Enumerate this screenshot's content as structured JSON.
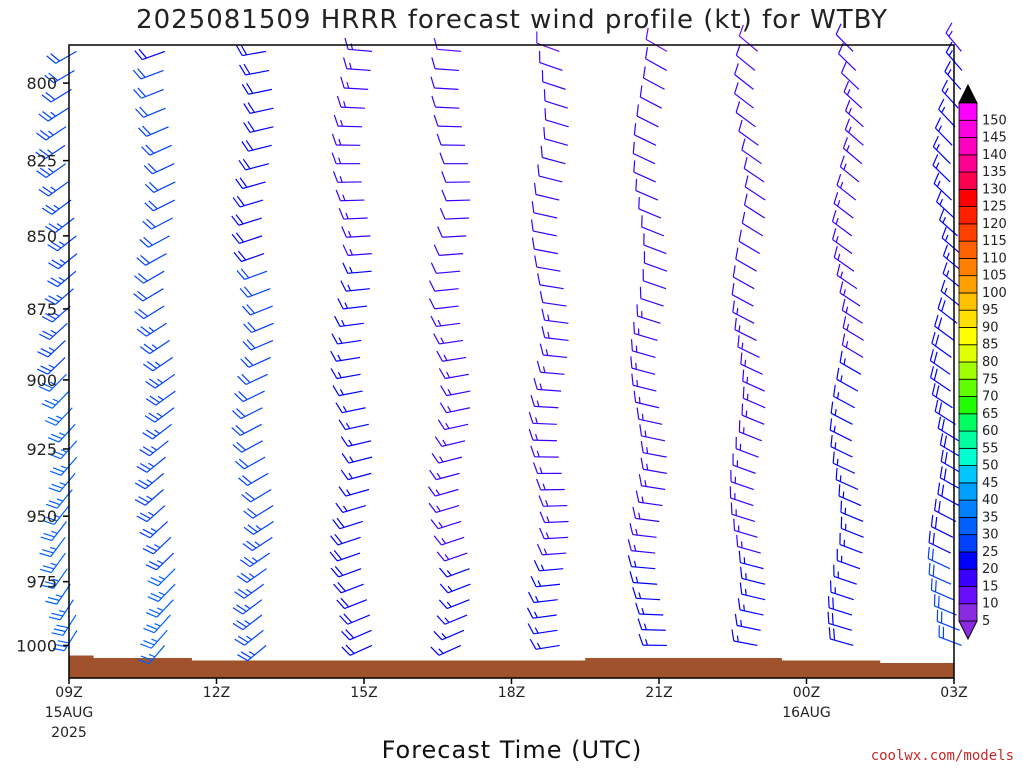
{
  "chart_data": {
    "type": "wind-barb-profile",
    "title": "2025081509 HRRR forecast wind profile (kt) for WTBY",
    "xlabel": "Forecast Time (UTC)",
    "ylabel": "",
    "credit": "coolwx.com/models",
    "y_axis": {
      "ticks": [
        800,
        825,
        850,
        875,
        900,
        925,
        950,
        975,
        1000
      ],
      "range": [
        1013,
        788
      ],
      "inverted": true
    },
    "x_axis": {
      "range_hours": [
        0,
        18
      ],
      "ticks": [
        {
          "hour": 0,
          "label": "09Z",
          "sub1": "15AUG",
          "sub2": "2025"
        },
        {
          "hour": 3,
          "label": "12Z"
        },
        {
          "hour": 6,
          "label": "15Z"
        },
        {
          "hour": 9,
          "label": "18Z"
        },
        {
          "hour": 12,
          "label": "21Z"
        },
        {
          "hour": 15,
          "label": "00Z",
          "sub1": "16AUG"
        },
        {
          "hour": 18,
          "label": "03Z"
        }
      ]
    },
    "colorbar": {
      "unit": "kt",
      "levels": [
        5,
        10,
        15,
        20,
        25,
        30,
        35,
        40,
        45,
        50,
        55,
        60,
        65,
        70,
        75,
        80,
        85,
        90,
        95,
        100,
        105,
        110,
        115,
        120,
        125,
        130,
        135,
        140,
        145,
        150
      ],
      "colors": [
        "#8a2be2",
        "#6a0dff",
        "#3a00ff",
        "#0000ff",
        "#0040ff",
        "#0060ff",
        "#0080ff",
        "#00a0ff",
        "#00c8ff",
        "#00ffd0",
        "#00ffa0",
        "#00ff60",
        "#20ff00",
        "#60ff00",
        "#a0ff00",
        "#e0ff00",
        "#ffff00",
        "#ffe000",
        "#ffc000",
        "#ffa000",
        "#ff8000",
        "#ff6000",
        "#ff4000",
        "#ff2000",
        "#ff0000",
        "#ff0050",
        "#ff0090",
        "#ff00c0",
        "#ff00e0",
        "#ff00ff"
      ],
      "top_arrow_color": "#000000",
      "bottom_arrow_color": "#8a2be2"
    },
    "surface_pressure": [
      {
        "hour": 0,
        "p": 1004
      },
      {
        "hour": 0.5,
        "p": 1005
      },
      {
        "hour": 2.5,
        "p": 1006
      },
      {
        "hour": 10.5,
        "p": 1005
      },
      {
        "hour": 14.5,
        "p": 1006
      },
      {
        "hour": 16.5,
        "p": 1007
      },
      {
        "hour": 18,
        "p": 1007
      }
    ],
    "surface_color": "#a0522d",
    "series": [
      {
        "hour": 0,
        "speed": 22,
        "dir": 240
      },
      {
        "hour": 2,
        "speed": 20,
        "dir": 250
      },
      {
        "hour": 4,
        "speed": 18,
        "dir": 260
      },
      {
        "hour": 6,
        "speed": 13,
        "dir": 275
      },
      {
        "hour": 8,
        "speed": 10,
        "dir": 275
      },
      {
        "hour": 10,
        "speed": 10,
        "dir": 290
      },
      {
        "hour": 12,
        "speed": 10,
        "dir": 300
      },
      {
        "hour": 14,
        "speed": 10,
        "dir": 310
      },
      {
        "hour": 16,
        "speed": 12,
        "dir": 315
      },
      {
        "hour": 18,
        "speed": 15,
        "dir": 320
      }
    ]
  }
}
